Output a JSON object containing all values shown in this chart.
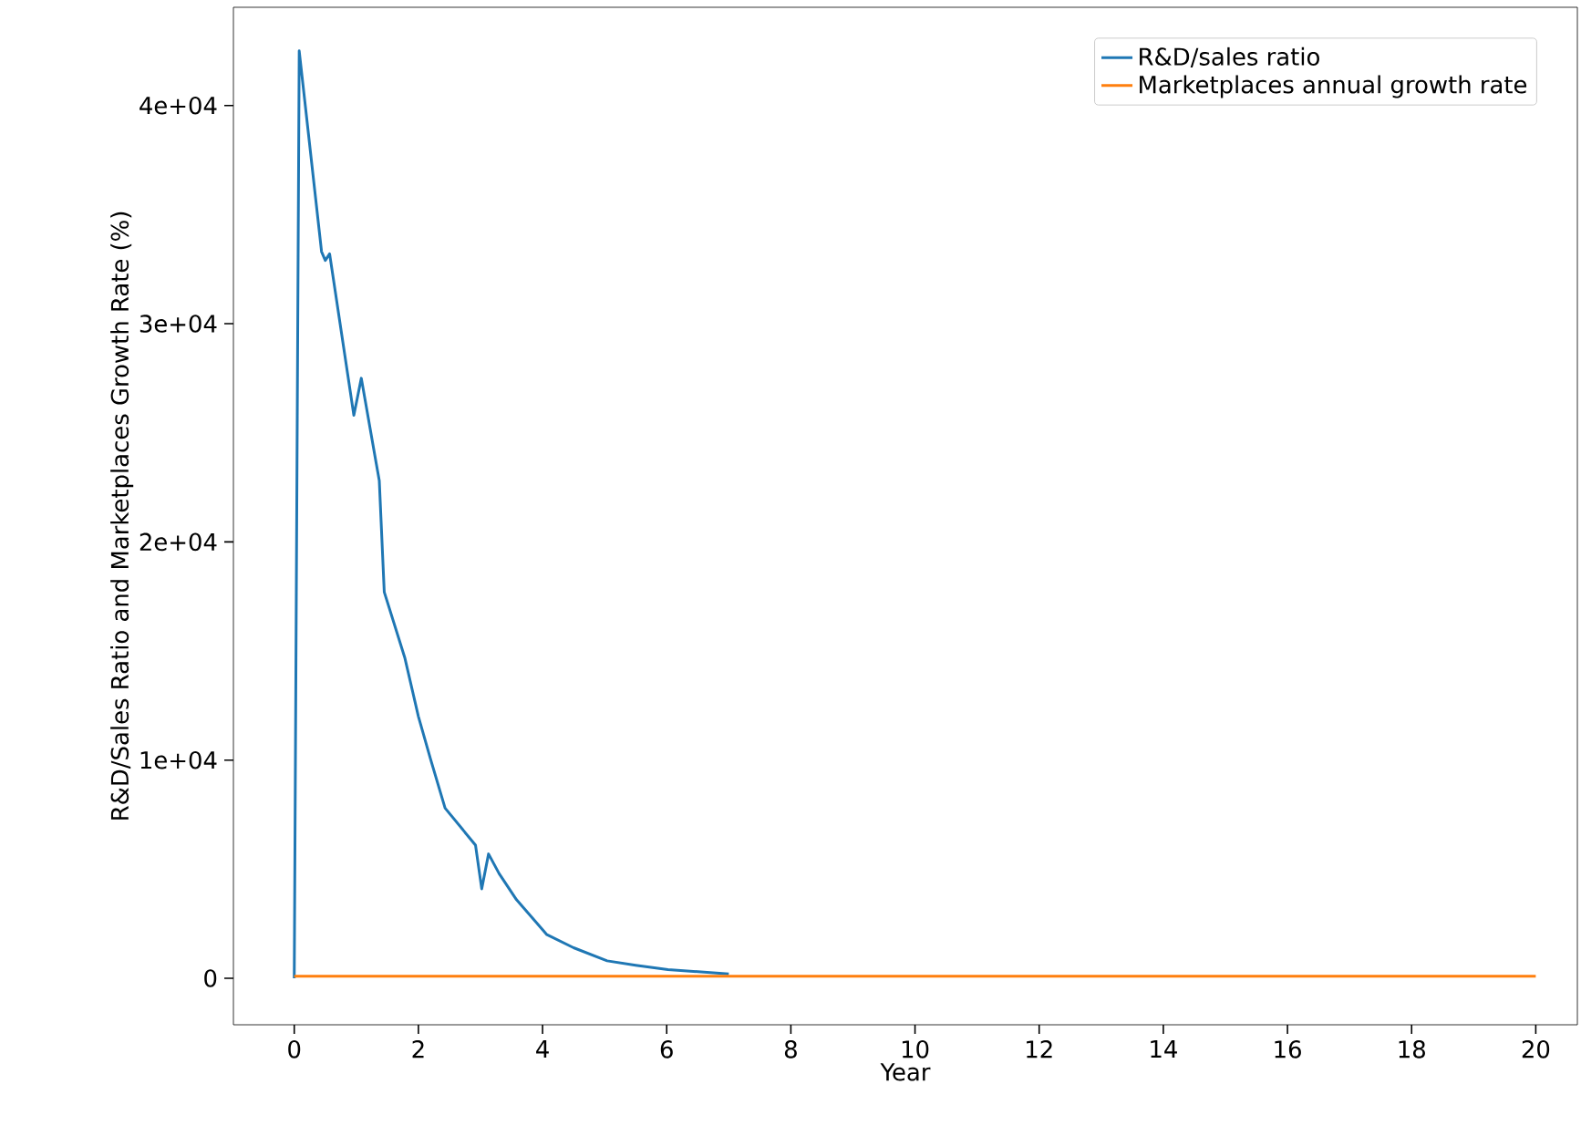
{
  "chart_data": {
    "type": "line",
    "xlabel": "Year",
    "ylabel": "R&D/Sales Ratio and Marketplaces Growth Rate (%)",
    "xlim": [
      -0.98,
      20.67
    ],
    "ylim": [
      -2130,
      44500
    ],
    "xticks": [
      0,
      2,
      4,
      6,
      8,
      10,
      12,
      14,
      16,
      18,
      20
    ],
    "yticks": [
      0,
      {
        "value": 10000,
        "label": "1e+04"
      },
      {
        "value": 20000,
        "label": "2e+04"
      },
      {
        "value": 30000,
        "label": "3e+04"
      },
      {
        "value": 40000,
        "label": "4e+04"
      }
    ],
    "legend": "top right",
    "grid": false,
    "marker": "none",
    "line_style": "solid",
    "series": [
      {
        "name": "R&D/sales ratio",
        "color": "#1f77b4",
        "x": [
          0,
          0.08,
          0.44,
          0.5,
          0.57,
          0.96,
          1.08,
          1.37,
          1.45,
          1.78,
          2.0,
          2.2,
          2.43,
          2.92,
          3.02,
          3.13,
          3.3,
          3.58,
          4.07,
          4.5,
          5.04,
          5.5,
          6.02,
          7.0
        ],
        "values": [
          0,
          42500,
          33300,
          32900,
          33200,
          25800,
          27500,
          22800,
          17700,
          14700,
          12000,
          10000,
          7800,
          6100,
          4100,
          5700,
          4800,
          3600,
          2000,
          1400,
          800,
          600,
          400,
          200
        ]
      },
      {
        "name": "Marketplaces annual growth rate",
        "color": "#ff7f0e",
        "x": [
          0,
          20
        ],
        "values": [
          100,
          100
        ]
      }
    ]
  }
}
